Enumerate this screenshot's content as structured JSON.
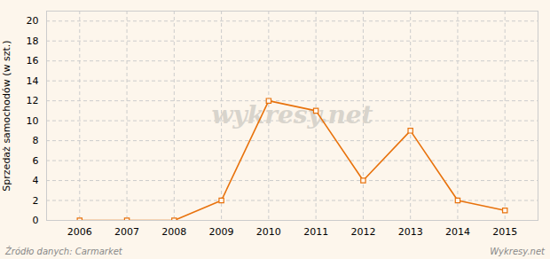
{
  "chart_data": {
    "type": "line",
    "x": [
      2006,
      2007,
      2008,
      2009,
      2010,
      2011,
      2012,
      2013,
      2014,
      2015
    ],
    "values": [
      0,
      0,
      0,
      2,
      12,
      11,
      4,
      9,
      2,
      1
    ],
    "ylabel": "Sprzedaż samochodów (w szt.)",
    "xlim": [
      2005.3,
      2015.7
    ],
    "xticks": [
      2006,
      2007,
      2008,
      2009,
      2010,
      2011,
      2012,
      2013,
      2014,
      2015
    ],
    "ylim": [
      0,
      21
    ],
    "yticks": [
      0,
      2,
      4,
      6,
      8,
      10,
      12,
      14,
      16,
      18,
      20
    ],
    "grid": true,
    "color": "#e8720c",
    "marker": "square",
    "annotations": [
      "wykresy.net"
    ],
    "source": "Źródło danych:  Carmarket",
    "credit": "Wykresy.net"
  }
}
